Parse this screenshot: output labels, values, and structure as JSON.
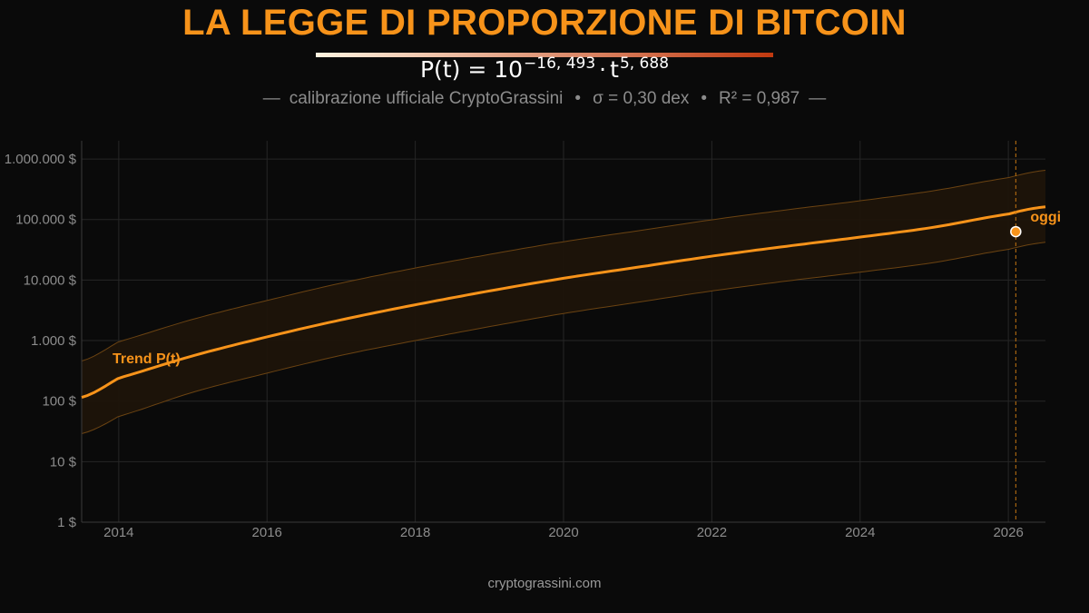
{
  "title": "LA LEGGE DI PROPORZIONE DI BITCOIN",
  "formula": {
    "lhs": "P(t) = 10",
    "exp1": "−16, 493",
    "dot": "·",
    "base2": "t",
    "exp2": "5, 688"
  },
  "subtitle": {
    "dash": "—",
    "part1": "calibrazione ufficiale CryptoGrassini",
    "sep": "•",
    "part2": "σ = 0,30 dex",
    "part3": "R² = 0,987"
  },
  "footer": "cryptograssini.com",
  "colors": {
    "accent": "#f7931a",
    "title": "#f7931a",
    "background": "#0a0a0a",
    "band_fill": "#1e140a",
    "band_edge": "#6b4312",
    "grid": "#262626",
    "axis_text": "#8c8c8c",
    "rule_start": "#fff3e0",
    "rule_end": "#c0390f"
  },
  "chart_data": {
    "type": "line",
    "title": "LA LEGGE DI PROPORZIONE DI BITCOIN",
    "yscale": "log",
    "xlim": [
      2013.5,
      2026.5
    ],
    "ylim": [
      1,
      2000000
    ],
    "grid": true,
    "series": [
      {
        "name": "Trend P(t)",
        "x": [
          2013.5,
          2014,
          2015,
          2016,
          2017,
          2018,
          2019,
          2020,
          2021,
          2022,
          2023,
          2024,
          2025,
          2026,
          2026.5
        ],
        "y": [
          115,
          240,
          560,
          1150,
          2200,
          3900,
          6600,
          10700,
          16300,
          24800,
          36100,
          51200,
          74800,
          123000,
          162000
        ]
      }
    ],
    "band": {
      "x": [
        2013.5,
        2014,
        2015,
        2016,
        2017,
        2018,
        2019,
        2020,
        2021,
        2022,
        2023,
        2024,
        2025,
        2026,
        2026.5
      ],
      "lower": [
        29,
        56,
        140,
        290,
        570,
        1000,
        1700,
        2800,
        4300,
        6600,
        9600,
        13500,
        19500,
        32000,
        42000
      ],
      "upper": [
        460,
        960,
        2250,
        4600,
        8900,
        15800,
        26500,
        43000,
        65000,
        99000,
        144000,
        204000,
        300000,
        490000,
        650000
      ]
    },
    "current_point": {
      "label": "oggi",
      "x": 2026.1,
      "y": 63000
    },
    "today_x": 2026.1,
    "trend_label": "Trend P(t)",
    "x_ticks": [
      2014,
      2016,
      2018,
      2020,
      2022,
      2024,
      2026
    ],
    "x_tick_labels": [
      "2014",
      "2016",
      "2018",
      "2020",
      "2022",
      "2024",
      "2026"
    ],
    "y_ticks": [
      1,
      10,
      100,
      1000,
      10000,
      100000,
      1000000
    ],
    "y_tick_labels": [
      "1 $",
      "10 $",
      "100 $",
      "1.000 $",
      "10.000 $",
      "100.000 $",
      "1.000.000 $"
    ]
  }
}
